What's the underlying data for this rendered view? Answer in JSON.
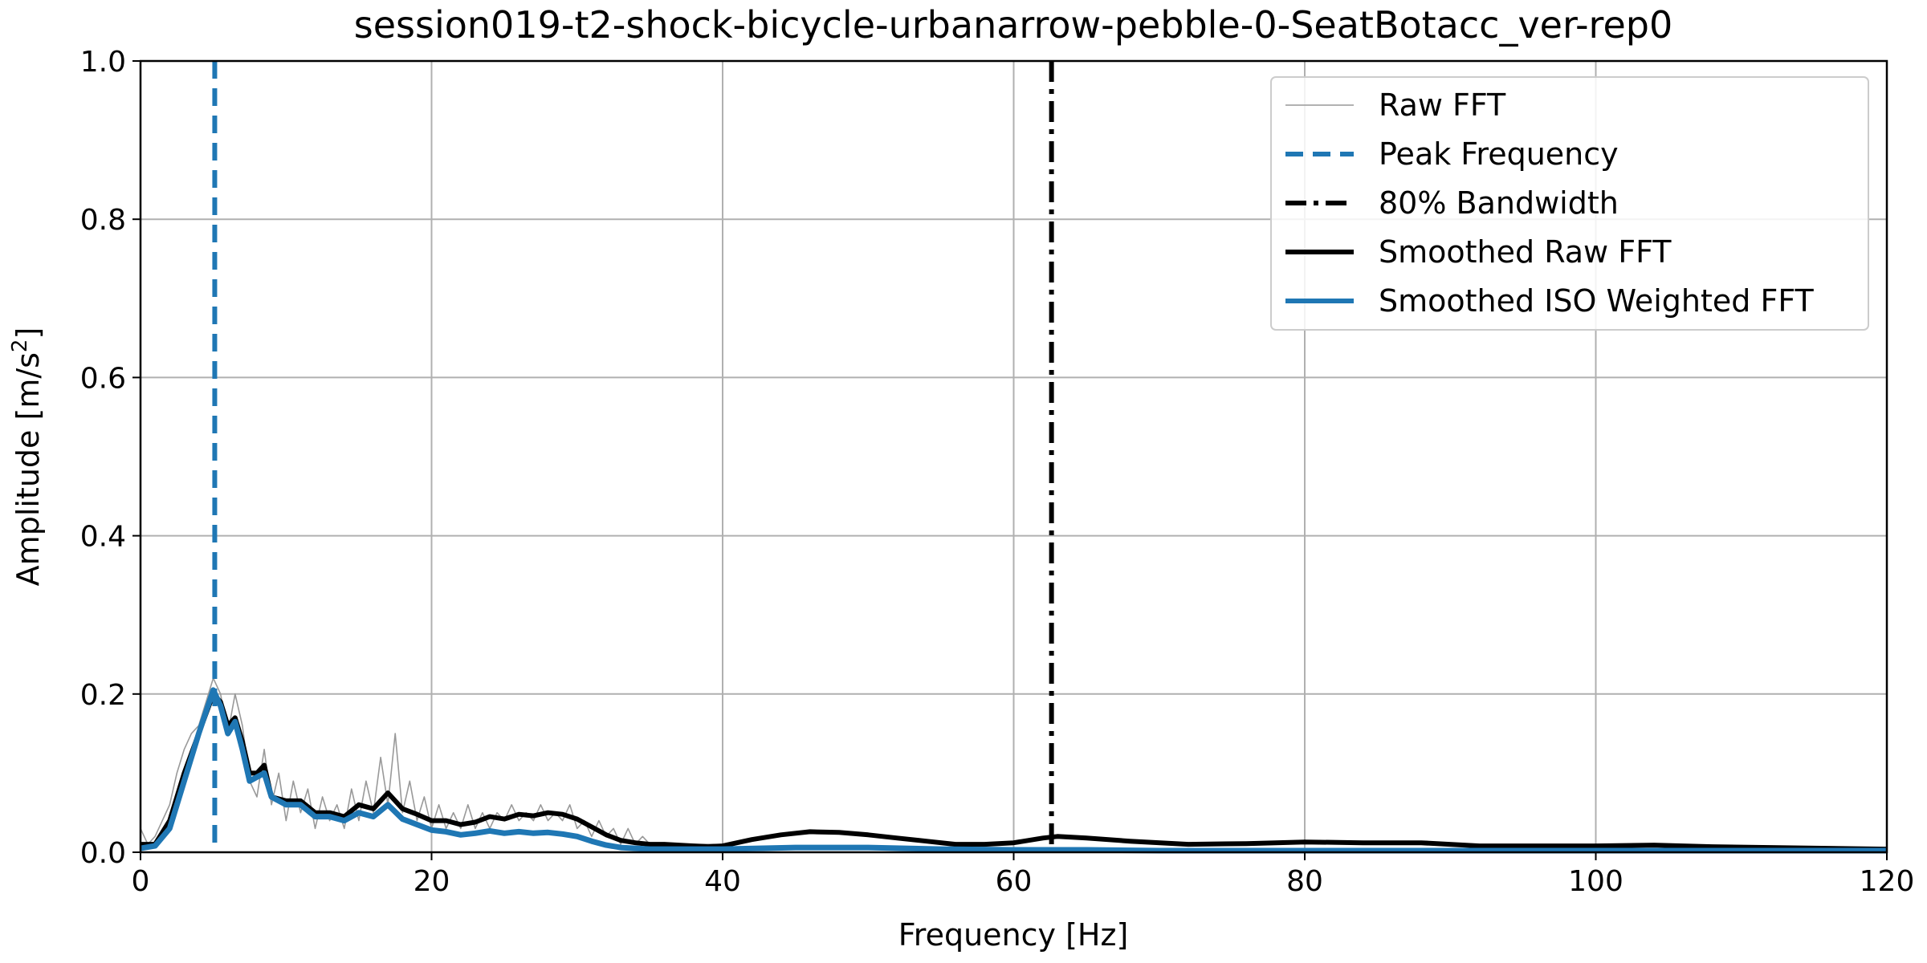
{
  "chart_data": {
    "type": "line",
    "title": "session019-t2-shock-bicycle-urbanarrow-pebble-0-SeatBotacc_ver-rep0",
    "xlabel": "Frequency [Hz]",
    "ylabel_main": "Amplitude [m/s",
    "ylabel_sup": "2",
    "ylabel_end": "]",
    "xlim": [
      0,
      120
    ],
    "ylim": [
      0,
      1.0
    ],
    "xticks": [
      0,
      20,
      40,
      60,
      80,
      100,
      120
    ],
    "xtick_labels": [
      "0",
      "20",
      "40",
      "60",
      "80",
      "100",
      "120"
    ],
    "yticks": [
      0.0,
      0.2,
      0.4,
      0.6,
      0.8,
      1.0
    ],
    "ytick_labels": [
      "0.0",
      "0.2",
      "0.4",
      "0.6",
      "0.8",
      "1.0"
    ],
    "grid": true,
    "legend_position": "top-right",
    "colors": {
      "raw": "#999999",
      "peak": "#1f77b4",
      "bandwidth": "#000000",
      "smoothed_raw": "#000000",
      "smoothed_iso": "#1f77b4"
    },
    "peak_frequency": 5.1,
    "bandwidth_80": 62.6,
    "series": [
      {
        "name": "Raw FFT",
        "x": [
          0,
          0.5,
          1,
          1.5,
          2,
          2.5,
          3,
          3.5,
          4,
          4.5,
          5,
          5.5,
          6,
          6.5,
          7,
          7.5,
          8,
          8.5,
          9,
          9.5,
          10,
          10.5,
          11,
          11.5,
          12,
          12.5,
          13,
          13.5,
          14,
          14.5,
          15,
          15.5,
          16,
          16.5,
          17,
          17.5,
          18,
          18.5,
          19,
          19.5,
          20,
          20.5,
          21,
          21.5,
          22,
          22.5,
          23,
          23.5,
          24,
          24.5,
          25,
          25.5,
          26,
          26.5,
          27,
          27.5,
          28,
          28.5,
          29,
          29.5,
          30,
          30.5,
          31,
          31.5,
          32,
          32.5,
          33,
          33.5,
          34,
          34.5,
          35,
          36,
          37,
          38,
          39,
          40
        ],
        "values": [
          0.03,
          0.01,
          0.02,
          0.04,
          0.06,
          0.1,
          0.13,
          0.15,
          0.16,
          0.19,
          0.22,
          0.2,
          0.15,
          0.2,
          0.16,
          0.09,
          0.07,
          0.13,
          0.06,
          0.1,
          0.04,
          0.09,
          0.05,
          0.08,
          0.03,
          0.07,
          0.04,
          0.06,
          0.03,
          0.08,
          0.04,
          0.09,
          0.05,
          0.12,
          0.06,
          0.15,
          0.05,
          0.09,
          0.04,
          0.07,
          0.03,
          0.06,
          0.03,
          0.05,
          0.03,
          0.06,
          0.03,
          0.05,
          0.03,
          0.05,
          0.04,
          0.06,
          0.04,
          0.05,
          0.04,
          0.06,
          0.04,
          0.05,
          0.04,
          0.06,
          0.03,
          0.04,
          0.02,
          0.04,
          0.02,
          0.03,
          0.01,
          0.03,
          0.01,
          0.02,
          0.01,
          0.01,
          0.01,
          0.01,
          0.01,
          0.01
        ]
      },
      {
        "name": "Smoothed Raw FFT",
        "x": [
          0,
          1,
          2,
          3,
          4,
          5,
          5.5,
          6,
          6.5,
          7,
          7.5,
          8,
          8.5,
          9,
          10,
          11,
          12,
          13,
          14,
          15,
          16,
          17,
          18,
          19,
          20,
          21,
          22,
          23,
          24,
          25,
          26,
          27,
          28,
          29,
          30,
          31,
          32,
          33,
          34,
          35,
          36,
          37,
          38,
          39,
          40,
          42,
          44,
          46,
          48,
          50,
          52,
          54,
          56,
          58,
          60,
          62,
          63,
          65,
          68,
          72,
          76,
          80,
          84,
          88,
          92,
          96,
          100,
          104,
          108,
          112,
          116,
          120
        ],
        "values": [
          0.01,
          0.01,
          0.04,
          0.1,
          0.15,
          0.2,
          0.19,
          0.16,
          0.17,
          0.14,
          0.1,
          0.1,
          0.11,
          0.07,
          0.065,
          0.065,
          0.05,
          0.05,
          0.045,
          0.06,
          0.055,
          0.075,
          0.055,
          0.048,
          0.04,
          0.04,
          0.035,
          0.038,
          0.045,
          0.042,
          0.048,
          0.046,
          0.05,
          0.048,
          0.042,
          0.032,
          0.022,
          0.015,
          0.012,
          0.01,
          0.01,
          0.009,
          0.008,
          0.007,
          0.008,
          0.016,
          0.022,
          0.026,
          0.025,
          0.022,
          0.018,
          0.014,
          0.01,
          0.01,
          0.012,
          0.018,
          0.02,
          0.018,
          0.014,
          0.01,
          0.011,
          0.013,
          0.012,
          0.012,
          0.008,
          0.008,
          0.008,
          0.009,
          0.007,
          0.006,
          0.005,
          0.004
        ]
      },
      {
        "name": "Smoothed ISO Weighted FFT",
        "x": [
          0,
          1,
          2,
          3,
          4,
          5,
          5.5,
          6,
          6.5,
          7,
          7.5,
          8,
          8.5,
          9,
          10,
          11,
          12,
          13,
          14,
          15,
          16,
          17,
          18,
          19,
          20,
          21,
          22,
          23,
          24,
          25,
          26,
          27,
          28,
          29,
          30,
          31,
          32,
          33,
          34,
          35,
          36,
          38,
          40,
          45,
          50,
          55,
          60,
          65,
          70,
          80,
          90,
          100,
          110,
          120
        ],
        "values": [
          0.005,
          0.008,
          0.03,
          0.09,
          0.15,
          0.205,
          0.185,
          0.15,
          0.165,
          0.13,
          0.09,
          0.095,
          0.1,
          0.07,
          0.06,
          0.06,
          0.045,
          0.045,
          0.04,
          0.05,
          0.045,
          0.06,
          0.042,
          0.035,
          0.028,
          0.026,
          0.022,
          0.024,
          0.027,
          0.024,
          0.026,
          0.024,
          0.025,
          0.023,
          0.02,
          0.014,
          0.009,
          0.006,
          0.005,
          0.004,
          0.004,
          0.004,
          0.004,
          0.006,
          0.006,
          0.004,
          0.003,
          0.003,
          0.002,
          0.002,
          0.002,
          0.002,
          0.002,
          0.002
        ]
      }
    ],
    "legend": [
      {
        "label": "Raw FFT",
        "style": "raw"
      },
      {
        "label": "Peak Frequency",
        "style": "peak"
      },
      {
        "label": "80% Bandwidth",
        "style": "bandwidth"
      },
      {
        "label": "Smoothed Raw FFT",
        "style": "smoothed_raw"
      },
      {
        "label": "Smoothed ISO Weighted FFT",
        "style": "smoothed_iso"
      }
    ]
  }
}
